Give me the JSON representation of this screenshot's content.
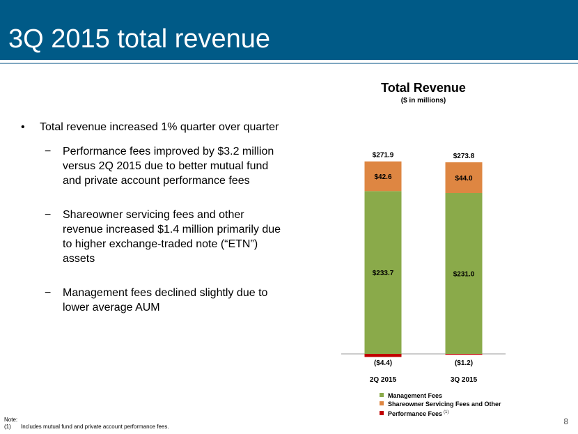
{
  "slide": {
    "title": "3Q 2015 total revenue",
    "page_number": "8"
  },
  "bullets": {
    "main": "Total revenue increased 1% quarter over quarter",
    "sub": [
      "Performance fees improved by $3.2 million versus 2Q 2015 due to better mutual fund and private account performance fees",
      "Shareowner servicing fees and other revenue increased $1.4 million primarily due to higher exchange-traded note (“ETN”) assets",
      "Management fees declined slightly due to lower average AUM"
    ]
  },
  "note": {
    "label": "Note:",
    "ref": "(1)",
    "text": "Includes mutual fund and private account performance fees."
  },
  "chart_data": {
    "type": "bar",
    "stacked": true,
    "title": "Total Revenue",
    "subtitle": "($ in millions)",
    "categories": [
      "2Q 2015",
      "3Q 2015"
    ],
    "totals": [
      "$271.9",
      "$273.8"
    ],
    "series": [
      {
        "name": "Management Fees",
        "color": "#8aaa4a",
        "values": [
          233.7,
          231.0
        ],
        "labels": [
          "$233.7",
          "$231.0"
        ]
      },
      {
        "name": "Shareowner Servicing Fees and Other",
        "color": "#de8642",
        "values": [
          42.6,
          44.0
        ],
        "labels": [
          "$42.6",
          "$44.0"
        ]
      },
      {
        "name": "Performance Fees",
        "legend_note": "(1)",
        "color": "#c00000",
        "values": [
          -4.4,
          -1.2
        ],
        "labels": [
          "($4.4)",
          "($1.2)"
        ]
      }
    ]
  }
}
